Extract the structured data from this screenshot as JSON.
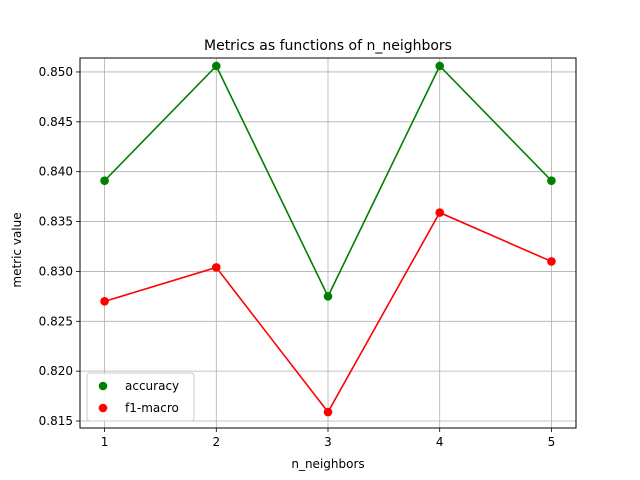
{
  "chart_data": {
    "type": "line",
    "title": "Metrics as functions of n_neighbors",
    "xlabel": "n_neighbors",
    "ylabel": "metric value",
    "x": [
      1,
      2,
      3,
      4,
      5
    ],
    "xticks": [
      "1",
      "2",
      "3",
      "4",
      "5"
    ],
    "yticks": [
      "0.815",
      "0.820",
      "0.825",
      "0.830",
      "0.835",
      "0.840",
      "0.845",
      "0.850"
    ],
    "xlim": [
      0.78,
      5.22
    ],
    "ylim": [
      0.8143,
      0.8514
    ],
    "grid": true,
    "legend_position": "lower-left",
    "series": [
      {
        "name": "accuracy",
        "color": "#008000",
        "values": [
          0.8391,
          0.8506,
          0.8275,
          0.8506,
          0.8391
        ]
      },
      {
        "name": "f1-macro",
        "color": "#ff0000",
        "values": [
          0.827,
          0.8304,
          0.8159,
          0.8359,
          0.831
        ]
      }
    ]
  }
}
